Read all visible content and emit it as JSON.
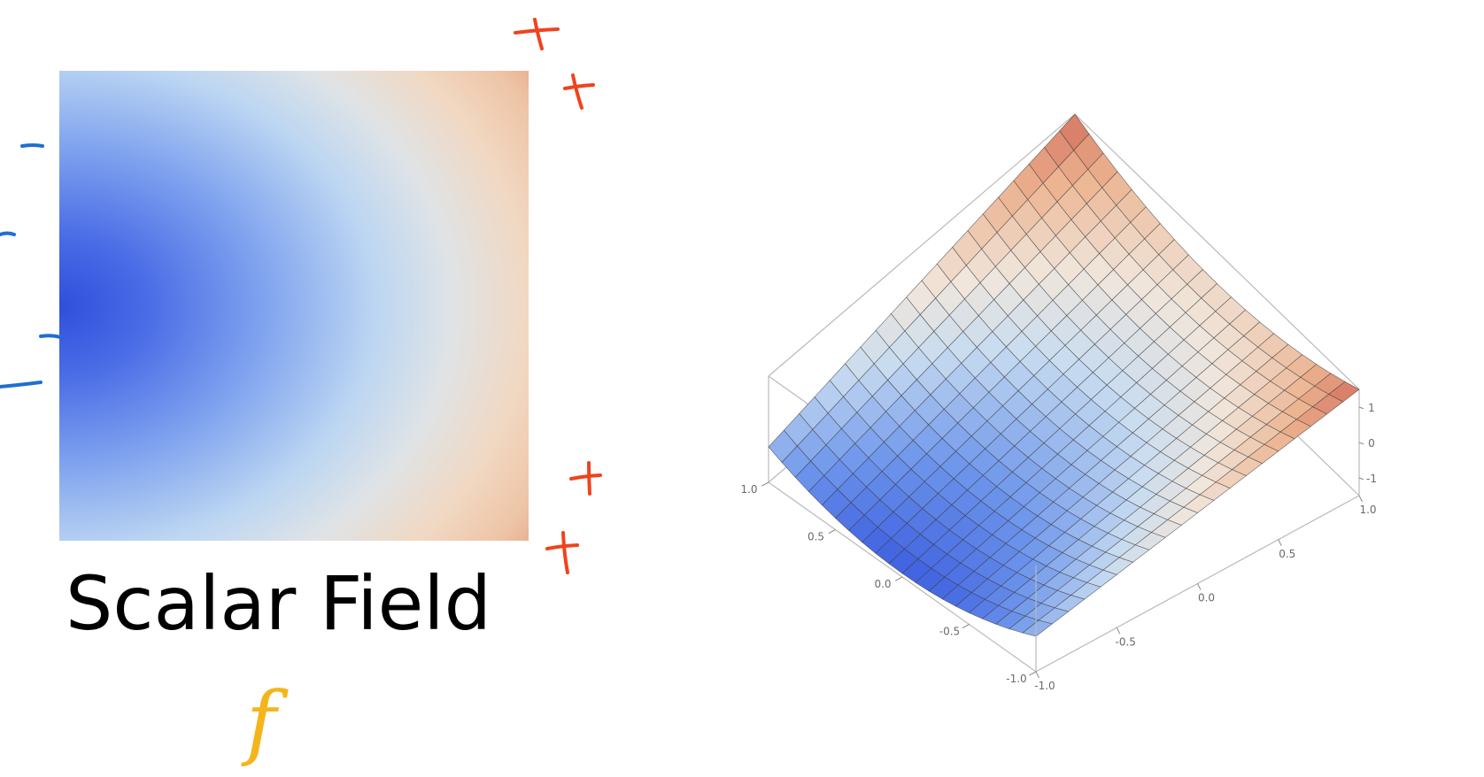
{
  "title": "Scalar Field",
  "function_symbol": "f",
  "colors": {
    "negative_marks": "#1f6fd1",
    "positive_marks": "#f0431d",
    "function_symbol": "#f4b51c",
    "low": "#2f4fdc",
    "mid": "#dfe3e6",
    "high": "#c55a4c"
  },
  "annotations": {
    "negative_sign": "−",
    "positive_sign": "+",
    "negative_count": 4,
    "positive_count": 4
  },
  "chart_data": {
    "type": "surface",
    "x_range": [
      -1.0,
      1.0
    ],
    "y_range": [
      -1.0,
      1.0
    ],
    "z_range": [
      -1.5,
      1.5
    ],
    "x_tick_labels": [
      "-1.0",
      "-0.5",
      "0.0",
      "0.5",
      "1.0"
    ],
    "y_tick_labels": [
      "-1.0",
      "-0.5",
      "0.0",
      "0.5",
      "1.0"
    ],
    "z_tick_labels": [
      "1",
      "0",
      "-1"
    ],
    "mesh_divisions": 20
  }
}
